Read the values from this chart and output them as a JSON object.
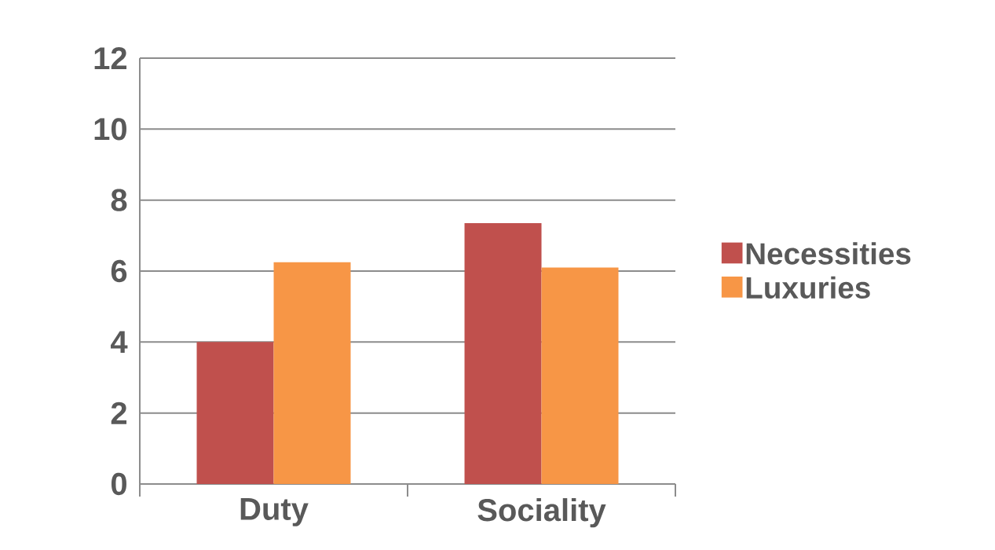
{
  "chart_data": {
    "type": "bar",
    "categories": [
      "Duty",
      "Sociality"
    ],
    "series": [
      {
        "name": "Necessities",
        "color": "#c0504d",
        "values": [
          4.0,
          7.35
        ]
      },
      {
        "name": "Luxuries",
        "color": "#f79646",
        "values": [
          6.25,
          6.1
        ]
      }
    ],
    "ylim": [
      0,
      12
    ],
    "yticks": [
      0,
      2,
      4,
      6,
      8,
      10,
      12
    ],
    "grid": "y",
    "legend": "right"
  }
}
